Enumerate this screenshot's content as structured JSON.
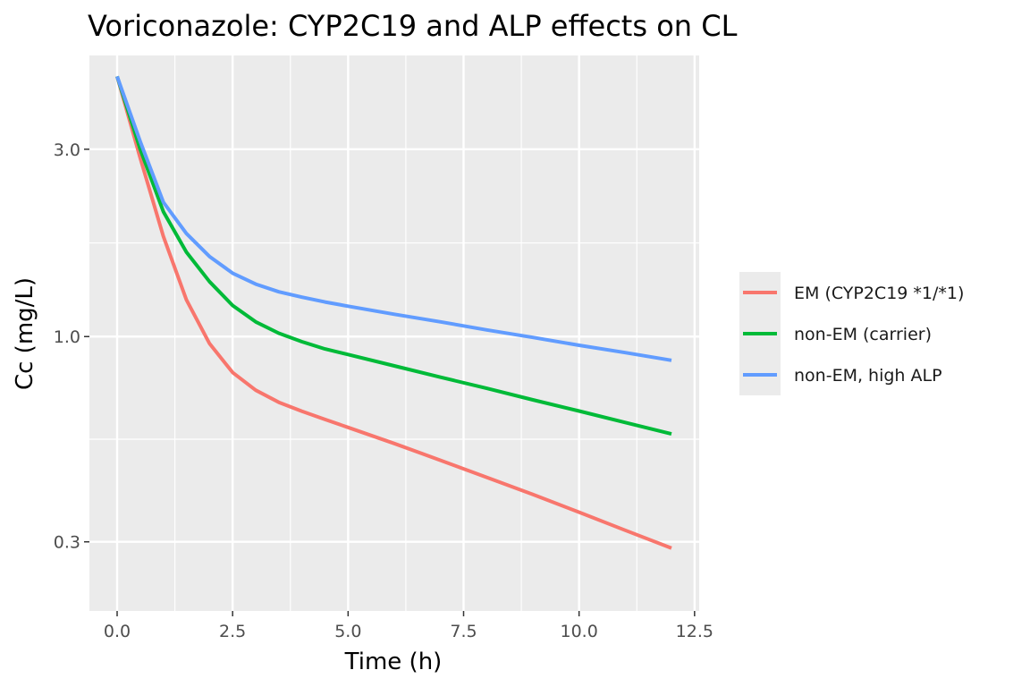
{
  "chart_data": {
    "type": "line",
    "title": "Voriconazole: CYP2C19 and ALP effects on CL",
    "xlabel": "Time (h)",
    "ylabel": "Cc (mg/L)",
    "y_scale": "log10",
    "xlim": [
      -0.6,
      12.6
    ],
    "ylim": [
      0.2,
      5.2
    ],
    "x_ticks": [
      0,
      2.5,
      5,
      7.5,
      10,
      12.5
    ],
    "x_tick_labels": [
      "0.0",
      "2.5",
      "5.0",
      "7.5",
      "10.0",
      "12.5"
    ],
    "y_ticks": [
      0.3,
      1.0,
      3.0
    ],
    "y_tick_labels": [
      "0.3",
      "1.0",
      "3.0"
    ],
    "grid": true,
    "legend_position": "right",
    "series": [
      {
        "name": "EM (CYP2C19 *1/*1)",
        "color": "#F8766D",
        "x": [
          0,
          0.5,
          1,
          1.5,
          2,
          2.5,
          3,
          3.5,
          4,
          4.5,
          5,
          6,
          7,
          8,
          9,
          10,
          11,
          12
        ],
        "y": [
          4.6,
          2.85,
          1.8,
          1.24,
          0.96,
          0.81,
          0.73,
          0.68,
          0.645,
          0.615,
          0.587,
          0.534,
          0.484,
          0.438,
          0.396,
          0.357,
          0.321,
          0.289
        ]
      },
      {
        "name": "non-EM (carrier)",
        "color": "#00BA38",
        "x": [
          0,
          0.5,
          1,
          1.5,
          2,
          2.5,
          3,
          3.5,
          4,
          4.5,
          5,
          6,
          7,
          8,
          9,
          10,
          11,
          12
        ],
        "y": [
          4.6,
          3.0,
          2.08,
          1.64,
          1.38,
          1.2,
          1.09,
          1.02,
          0.97,
          0.93,
          0.9,
          0.842,
          0.788,
          0.738,
          0.69,
          0.646,
          0.604,
          0.565
        ]
      },
      {
        "name": "non-EM, high ALP",
        "color": "#619CFF",
        "x": [
          0,
          0.5,
          1,
          1.5,
          2,
          2.5,
          3,
          3.5,
          4,
          4.5,
          5,
          6,
          7,
          8,
          9,
          10,
          11,
          12
        ],
        "y": [
          4.6,
          3.14,
          2.2,
          1.83,
          1.6,
          1.45,
          1.36,
          1.3,
          1.26,
          1.225,
          1.195,
          1.14,
          1.09,
          1.04,
          0.995,
          0.95,
          0.91,
          0.87
        ]
      }
    ]
  }
}
